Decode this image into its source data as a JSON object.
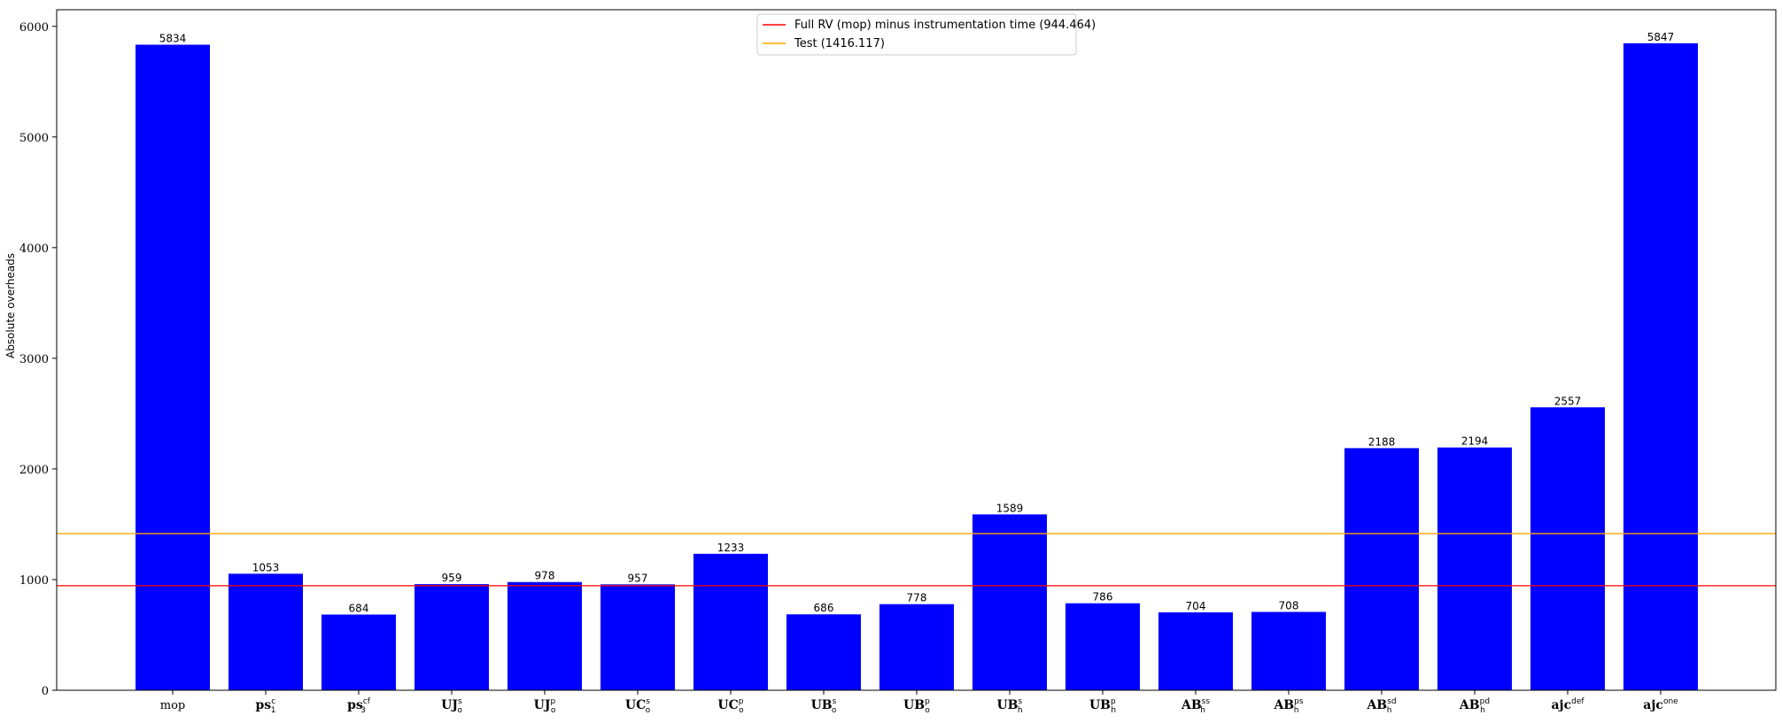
{
  "chart_data": {
    "type": "bar",
    "ylabel": "Absolute overheads",
    "ylim": [
      0,
      6150
    ],
    "yticks": [
      0,
      1000,
      2000,
      3000,
      4000,
      5000,
      6000
    ],
    "bar_color": "#0000ff",
    "categories": [
      {
        "main": "mop",
        "sup": "",
        "sub": "",
        "plain": true
      },
      {
        "main": "ps",
        "sup": "c",
        "sub": "1",
        "plain": false
      },
      {
        "main": "ps",
        "sup": "cf",
        "sub": "3",
        "plain": false
      },
      {
        "main": "UJ",
        "sup": "s",
        "sub": "o",
        "plain": false
      },
      {
        "main": "UJ",
        "sup": "p",
        "sub": "o",
        "plain": false
      },
      {
        "main": "UC",
        "sup": "s",
        "sub": "o",
        "plain": false
      },
      {
        "main": "UC",
        "sup": "p",
        "sub": "o",
        "plain": false
      },
      {
        "main": "UB",
        "sup": "s",
        "sub": "o",
        "plain": false
      },
      {
        "main": "UB",
        "sup": "p",
        "sub": "o",
        "plain": false
      },
      {
        "main": "UB",
        "sup": "s",
        "sub": "h",
        "plain": false
      },
      {
        "main": "UB",
        "sup": "p",
        "sub": "h",
        "plain": false
      },
      {
        "main": "AB",
        "sup": "ss",
        "sub": "h",
        "plain": false
      },
      {
        "main": "AB",
        "sup": "ps",
        "sub": "h",
        "plain": false
      },
      {
        "main": "AB",
        "sup": "sd",
        "sub": "h",
        "plain": false
      },
      {
        "main": "AB",
        "sup": "pd",
        "sub": "h",
        "plain": false
      },
      {
        "main": "ajc",
        "sup": "def",
        "sub": "",
        "plain": false
      },
      {
        "main": "ajc",
        "sup": "one",
        "sub": "",
        "plain": false
      }
    ],
    "values": [
      5834,
      1053,
      684,
      959,
      978,
      957,
      1233,
      686,
      778,
      1589,
      786,
      704,
      708,
      2188,
      2194,
      2557,
      5847
    ],
    "reference_lines": [
      {
        "label": "Full RV (mop) minus instrumentation time (944.464)",
        "value": 944.464,
        "color": "#ff0000"
      },
      {
        "label": "Test (1416.117)",
        "value": 1416.117,
        "color": "#ffa500"
      }
    ],
    "legend_position": "upper center",
    "grid": false
  }
}
